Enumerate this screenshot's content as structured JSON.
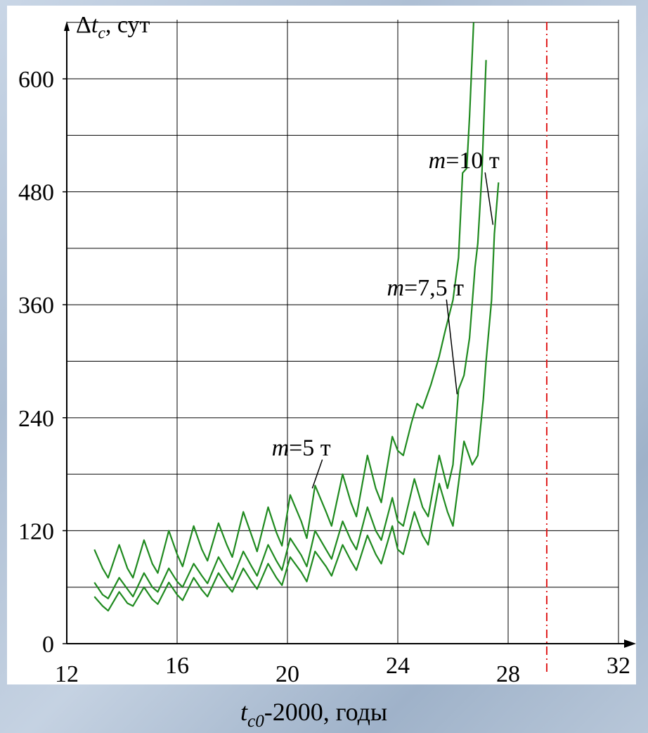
{
  "chart_data": {
    "type": "line",
    "ylabel": {
      "symbol": "Δt",
      "sub": "c",
      "rest": ", сут"
    },
    "xlabel": {
      "symbol": "t",
      "sub": "c0",
      "rest": "-2000, годы"
    },
    "xlim": [
      12,
      32
    ],
    "ylim": [
      0,
      680
    ],
    "x_ticks": [
      12,
      16,
      20,
      24,
      28,
      32
    ],
    "y_ticks": [
      0,
      120,
      240,
      360,
      480,
      600
    ],
    "grid": true,
    "reference_line": {
      "x": 29.4,
      "color": "#e02020",
      "style": "dash-dot"
    },
    "series_color": "#1f8a1f",
    "series": [
      {
        "name": "m=5 т",
        "points": [
          [
            13.0,
            100
          ],
          [
            13.3,
            80
          ],
          [
            13.5,
            70
          ],
          [
            13.9,
            105
          ],
          [
            14.2,
            80
          ],
          [
            14.4,
            70
          ],
          [
            14.8,
            110
          ],
          [
            15.1,
            85
          ],
          [
            15.3,
            75
          ],
          [
            15.7,
            120
          ],
          [
            16.0,
            95
          ],
          [
            16.2,
            82
          ],
          [
            16.6,
            125
          ],
          [
            16.9,
            100
          ],
          [
            17.1,
            88
          ],
          [
            17.5,
            128
          ],
          [
            17.8,
            105
          ],
          [
            18.0,
            92
          ],
          [
            18.4,
            140
          ],
          [
            18.7,
            115
          ],
          [
            18.9,
            98
          ],
          [
            19.3,
            145
          ],
          [
            19.6,
            118
          ],
          [
            19.8,
            104
          ],
          [
            20.1,
            158
          ],
          [
            20.5,
            130
          ],
          [
            20.7,
            112
          ],
          [
            21.0,
            168
          ],
          [
            21.4,
            140
          ],
          [
            21.6,
            125
          ],
          [
            22.0,
            180
          ],
          [
            22.3,
            150
          ],
          [
            22.5,
            135
          ],
          [
            22.9,
            200
          ],
          [
            23.2,
            165
          ],
          [
            23.4,
            150
          ],
          [
            23.8,
            220
          ],
          [
            24.0,
            205
          ],
          [
            24.2,
            200
          ],
          [
            24.5,
            235
          ],
          [
            24.7,
            255
          ],
          [
            24.9,
            250
          ],
          [
            25.2,
            275
          ],
          [
            25.5,
            305
          ],
          [
            25.7,
            330
          ],
          [
            26.0,
            365
          ],
          [
            26.2,
            410
          ],
          [
            26.35,
            500
          ],
          [
            26.5,
            505
          ],
          [
            26.6,
            560
          ],
          [
            26.75,
            660
          ]
        ]
      },
      {
        "name": "m=7,5 т",
        "points": [
          [
            13.0,
            65
          ],
          [
            13.3,
            52
          ],
          [
            13.5,
            48
          ],
          [
            13.9,
            70
          ],
          [
            14.2,
            58
          ],
          [
            14.4,
            50
          ],
          [
            14.8,
            75
          ],
          [
            15.1,
            60
          ],
          [
            15.3,
            55
          ],
          [
            15.7,
            80
          ],
          [
            16.0,
            66
          ],
          [
            16.2,
            60
          ],
          [
            16.6,
            85
          ],
          [
            16.9,
            72
          ],
          [
            17.1,
            64
          ],
          [
            17.5,
            92
          ],
          [
            17.8,
            77
          ],
          [
            18.0,
            68
          ],
          [
            18.4,
            98
          ],
          [
            18.7,
            82
          ],
          [
            18.9,
            72
          ],
          [
            19.3,
            105
          ],
          [
            19.6,
            88
          ],
          [
            19.8,
            78
          ],
          [
            20.1,
            112
          ],
          [
            20.5,
            94
          ],
          [
            20.7,
            82
          ],
          [
            21.0,
            120
          ],
          [
            21.4,
            100
          ],
          [
            21.6,
            90
          ],
          [
            22.0,
            130
          ],
          [
            22.3,
            110
          ],
          [
            22.5,
            100
          ],
          [
            22.9,
            145
          ],
          [
            23.2,
            120
          ],
          [
            23.4,
            110
          ],
          [
            23.8,
            155
          ],
          [
            24.0,
            130
          ],
          [
            24.2,
            125
          ],
          [
            24.6,
            175
          ],
          [
            24.9,
            145
          ],
          [
            25.1,
            135
          ],
          [
            25.5,
            200
          ],
          [
            25.8,
            165
          ],
          [
            26.0,
            190
          ],
          [
            26.2,
            270
          ],
          [
            26.4,
            285
          ],
          [
            26.6,
            325
          ],
          [
            26.8,
            400
          ],
          [
            26.9,
            425
          ],
          [
            27.05,
            500
          ],
          [
            27.2,
            620
          ]
        ]
      },
      {
        "name": "m=10 т",
        "points": [
          [
            13.0,
            50
          ],
          [
            13.3,
            40
          ],
          [
            13.5,
            35
          ],
          [
            13.9,
            55
          ],
          [
            14.2,
            43
          ],
          [
            14.4,
            40
          ],
          [
            14.8,
            60
          ],
          [
            15.1,
            47
          ],
          [
            15.3,
            42
          ],
          [
            15.7,
            65
          ],
          [
            16.0,
            52
          ],
          [
            16.2,
            46
          ],
          [
            16.6,
            70
          ],
          [
            16.9,
            57
          ],
          [
            17.1,
            50
          ],
          [
            17.5,
            75
          ],
          [
            17.8,
            62
          ],
          [
            18.0,
            55
          ],
          [
            18.4,
            80
          ],
          [
            18.7,
            66
          ],
          [
            18.9,
            58
          ],
          [
            19.3,
            85
          ],
          [
            19.6,
            70
          ],
          [
            19.8,
            62
          ],
          [
            20.1,
            92
          ],
          [
            20.5,
            76
          ],
          [
            20.7,
            66
          ],
          [
            21.0,
            98
          ],
          [
            21.4,
            82
          ],
          [
            21.6,
            72
          ],
          [
            22.0,
            105
          ],
          [
            22.3,
            88
          ],
          [
            22.5,
            78
          ],
          [
            22.9,
            115
          ],
          [
            23.2,
            95
          ],
          [
            23.4,
            85
          ],
          [
            23.8,
            125
          ],
          [
            24.0,
            100
          ],
          [
            24.2,
            95
          ],
          [
            24.6,
            140
          ],
          [
            24.9,
            115
          ],
          [
            25.1,
            105
          ],
          [
            25.5,
            170
          ],
          [
            25.8,
            140
          ],
          [
            26.0,
            125
          ],
          [
            26.4,
            215
          ],
          [
            26.7,
            190
          ],
          [
            26.9,
            200
          ],
          [
            27.1,
            260
          ],
          [
            27.2,
            300
          ],
          [
            27.4,
            365
          ],
          [
            27.5,
            435
          ],
          [
            27.65,
            490
          ]
        ]
      }
    ],
    "annotations": [
      {
        "prefix": "m",
        "text": "=10 т",
        "label_x": 26.4,
        "label_y": 505,
        "target_x": 27.45,
        "target_y": 445
      },
      {
        "prefix": "m",
        "text": "=7,5 т",
        "label_x": 25.0,
        "label_y": 370,
        "target_x": 26.15,
        "target_y": 265
      },
      {
        "prefix": "m",
        "text": "=5 т",
        "label_x": 20.5,
        "label_y": 200,
        "target_x": 20.9,
        "target_y": 165
      }
    ]
  }
}
